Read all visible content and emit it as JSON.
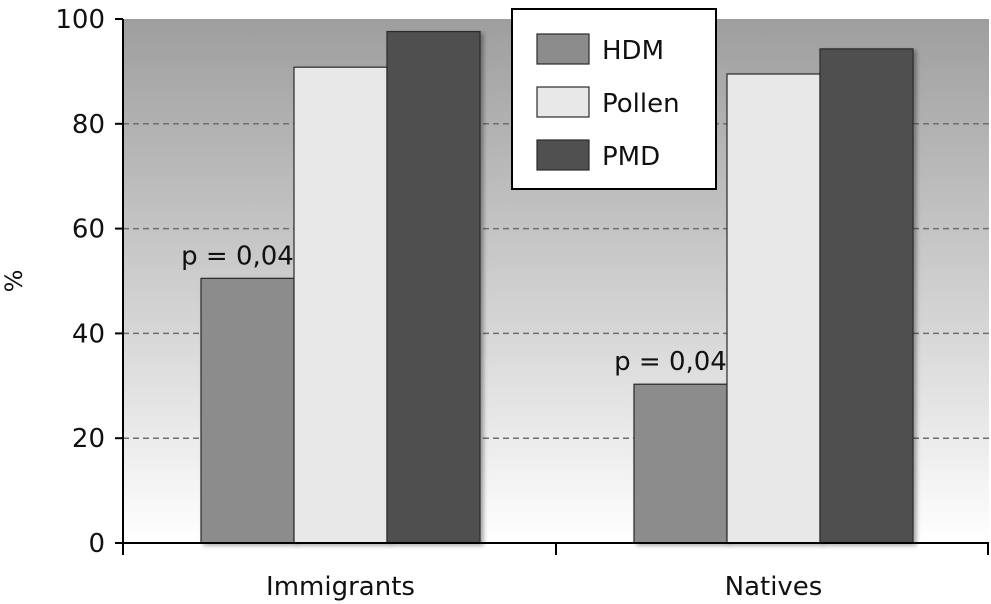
{
  "chart_data": {
    "type": "bar",
    "title": "",
    "xlabel": "",
    "ylabel": "%",
    "ylim": [
      0,
      100
    ],
    "yticks": [
      0,
      20,
      40,
      60,
      80,
      100
    ],
    "grid": true,
    "legend_position": "top-right",
    "categories": [
      "Immigrants",
      "Natives"
    ],
    "series": [
      {
        "name": "HDM",
        "values": [
          50.5,
          30.3
        ],
        "color": "#8c8c8c"
      },
      {
        "name": "Pollen",
        "values": [
          90.8,
          89.5
        ],
        "color": "#e8e8e8"
      },
      {
        "name": "PMD",
        "values": [
          97.6,
          94.3
        ],
        "color": "#505050"
      }
    ],
    "annotations": [
      {
        "text": "p = 0,04",
        "category": "Immigrants",
        "series": "HDM"
      },
      {
        "text": "p = 0,04",
        "category": "Natives",
        "series": "HDM"
      }
    ]
  }
}
